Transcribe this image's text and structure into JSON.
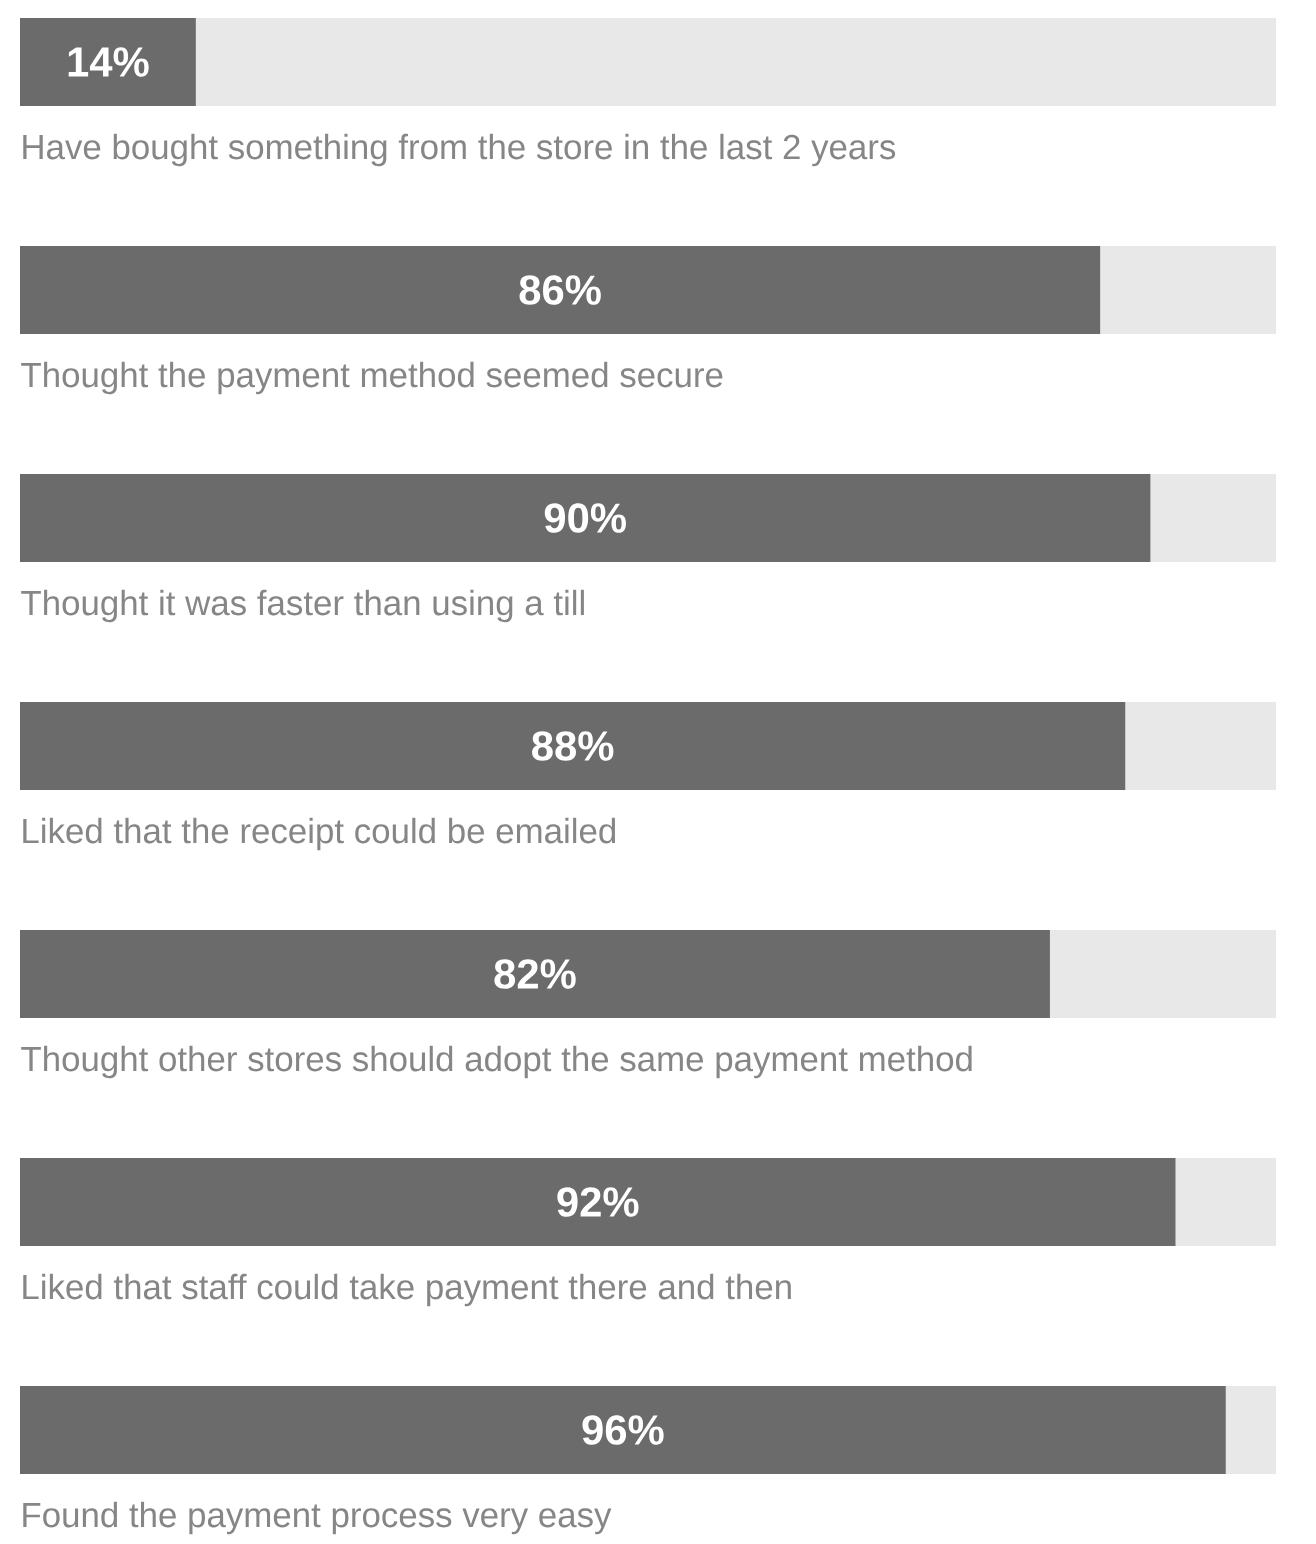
{
  "chart_data": {
    "type": "bar",
    "orientation": "horizontal",
    "stacked": true,
    "tick_labels": false,
    "xlim": [
      0,
      100
    ],
    "categories": [
      "Have bought something from the store in the last 2 years",
      "Thought the payment method seemed secure",
      "Thought it was faster than using a till",
      "Liked that the receipt could be emailed",
      "Thought other stores should adopt the same payment method",
      "Liked that staff could take payment there and then",
      "Found the payment process very easy"
    ],
    "series": [
      {
        "color": "#6b6b6b",
        "values": [
          14,
          86,
          90,
          88,
          82,
          92,
          96
        ],
        "value_labels": [
          "14%",
          "86%",
          "90%",
          "88%",
          "82%",
          "92%",
          "96%"
        ]
      },
      {
        "color": "#e8e8e8",
        "values": [
          86,
          14,
          10,
          12,
          18,
          8,
          4
        ]
      }
    ]
  }
}
